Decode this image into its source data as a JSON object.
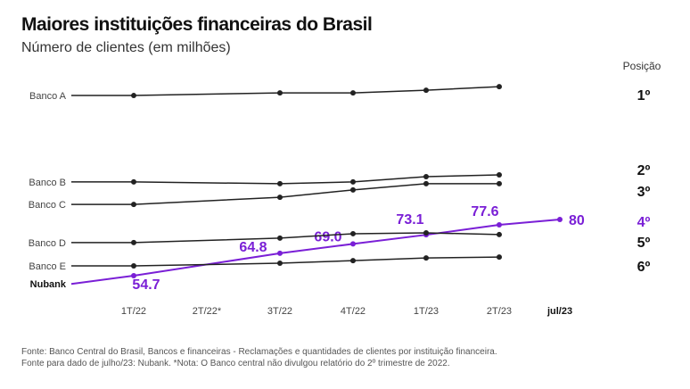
{
  "chart_data": {
    "type": "line",
    "title": "Maiores instituições financeiras do Brasil",
    "subtitle": "Número de clientes (em milhões)",
    "categories": [
      "1T/22",
      "2T/22*",
      "3T/22",
      "4T/22",
      "1T/23",
      "2T/23",
      "jul/23"
    ],
    "position_header": "Posição",
    "ylim": [
      45,
      140
    ],
    "grid": false,
    "series": [
      {
        "name": "Banco A",
        "position": "1º",
        "values": [
          135.8,
          null,
          137.0,
          137.0,
          138.2,
          139.8,
          null
        ]
      },
      {
        "name": "Banco B",
        "position": "2º",
        "values": [
          96.9,
          null,
          96.1,
          96.9,
          99.3,
          100.1,
          null
        ]
      },
      {
        "name": "Banco C",
        "position": "3º",
        "values": [
          86.8,
          null,
          90.0,
          93.3,
          96.1,
          96.1,
          null
        ]
      },
      {
        "name": "Nubank",
        "position": "4º",
        "highlight": true,
        "values": [
          54.7,
          null,
          64.8,
          69.0,
          73.1,
          77.6,
          80
        ],
        "labels": [
          "54.7",
          null,
          "64.8",
          "69.0",
          "73.1",
          "77.6",
          "80"
        ]
      },
      {
        "name": "Banco D",
        "position": "5º",
        "values": [
          69.6,
          null,
          71.6,
          73.6,
          74.0,
          73.2,
          null
        ]
      },
      {
        "name": "Banco E",
        "position": "6º",
        "values": [
          59.1,
          null,
          60.3,
          61.5,
          62.7,
          63.1,
          null
        ]
      }
    ],
    "note_values_other_banks": "estimated"
  },
  "colors": {
    "highlight": "#7a1fd6",
    "line": "#222222"
  },
  "footnotes": [
    "Fonte: Banco Central do Brasil, Bancos e financeiras - Reclamações e quantidades de clientes por instituição financeira.",
    "Fonte para dado de julho/23: Nubank. *Nota: O Banco central não divulgou relatório do 2º trimestre de 2022."
  ]
}
